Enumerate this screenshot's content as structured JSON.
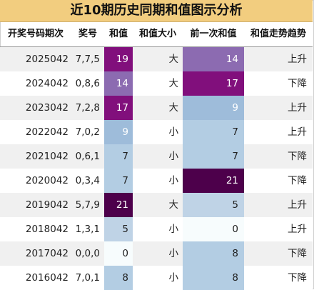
{
  "title": "近10期历史同期和值图示分析",
  "columns": {
    "period": "开奖号码期次",
    "numbers": "奖号",
    "sum": "和值",
    "size": "和值大小",
    "prev_sum": "前一次和值",
    "trend": "和值走势趋势"
  },
  "rows": [
    {
      "period": "2025042",
      "numbers": "7,7,5",
      "sum": "19",
      "size": "大",
      "prev_sum": "14",
      "trend": "上升"
    },
    {
      "period": "2024042",
      "numbers": "0,8,6",
      "sum": "14",
      "size": "大",
      "prev_sum": "17",
      "trend": "下降"
    },
    {
      "period": "2023042",
      "numbers": "7,2,8",
      "sum": "17",
      "size": "大",
      "prev_sum": "9",
      "trend": "上升"
    },
    {
      "period": "2022042",
      "numbers": "7,0,2",
      "sum": "9",
      "size": "小",
      "prev_sum": "7",
      "trend": "上升"
    },
    {
      "period": "2021042",
      "numbers": "0,6,1",
      "sum": "7",
      "size": "小",
      "prev_sum": "7",
      "trend": "下降"
    },
    {
      "period": "2020042",
      "numbers": "0,3,4",
      "sum": "7",
      "size": "小",
      "prev_sum": "21",
      "trend": "下降"
    },
    {
      "period": "2019042",
      "numbers": "5,7,9",
      "sum": "21",
      "size": "大",
      "prev_sum": "5",
      "trend": "上升"
    },
    {
      "period": "2018042",
      "numbers": "1,3,1",
      "sum": "5",
      "size": "小",
      "prev_sum": "0",
      "trend": "上升"
    },
    {
      "period": "2017042",
      "numbers": "0,0,0",
      "sum": "0",
      "size": "小",
      "prev_sum": "8",
      "trend": "下降"
    },
    {
      "period": "2016042",
      "numbers": "7,0,1",
      "sum": "8",
      "size": "小",
      "prev_sum": "8",
      "trend": "下降"
    }
  ],
  "colors": {
    "title_bg": "#f2cd7f",
    "heat_low": "#f7fcfd",
    "heat_mid_low": "#bfd3e6",
    "heat_mid": "#9ebcda",
    "heat_mid_high": "#8c6bb1",
    "heat_high": "#810f7c",
    "heat_max": "#4d004b"
  }
}
